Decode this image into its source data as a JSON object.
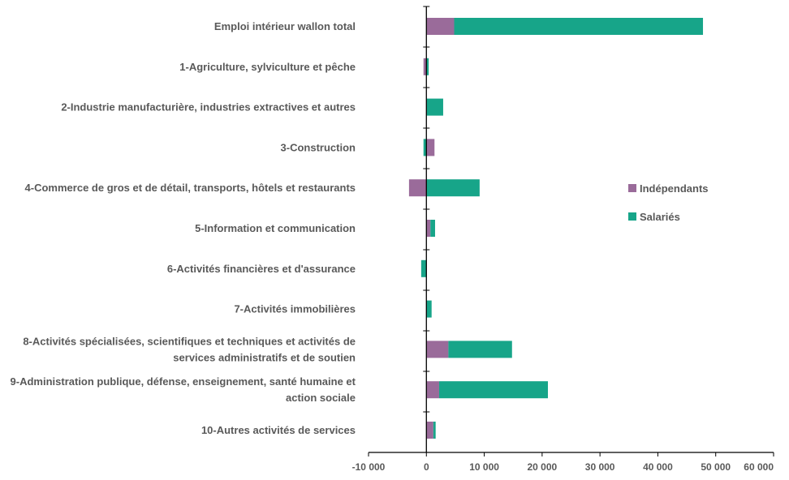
{
  "chart_data": {
    "type": "bar",
    "orientation": "horizontal",
    "stacked": true,
    "categories": [
      [
        "Emploi intérieur wallon total"
      ],
      [
        "1-Agriculture, sylviculture et pêche"
      ],
      [
        "2-Industrie manufacturière, industries extractives et autres"
      ],
      [
        "3-Construction"
      ],
      [
        "4-Commerce de gros et de détail, transports, hôtels et restaurants"
      ],
      [
        "5-Information et communication"
      ],
      [
        "6-Activités financières et d'assurance"
      ],
      [
        "7-Activités immobilières"
      ],
      [
        "8-Activités spécialisées, scientifiques et techniques et activités de",
        "services administratifs et de soutien"
      ],
      [
        "9-Administration publique, défense, enseignement, santé humaine et",
        "action sociale"
      ],
      [
        "10-Autres activités de services"
      ]
    ],
    "series": [
      {
        "name": "Indépendants",
        "color": "#9A6B9A",
        "values": [
          4800,
          -500,
          0,
          1400,
          -3000,
          700,
          0,
          0,
          3800,
          2200,
          1200
        ]
      },
      {
        "name": "Salariés",
        "color": "#17A589",
        "values": [
          43000,
          400,
          2900,
          -500,
          9200,
          800,
          -900,
          900,
          11000,
          18800,
          400
        ]
      }
    ],
    "xlim": [
      -10000,
      60000
    ],
    "xticks": [
      -10000,
      0,
      10000,
      20000,
      30000,
      40000,
      50000,
      60000
    ],
    "xtick_labels": [
      "-10 000",
      "0",
      "10 000",
      "20 000",
      "30 000",
      "40 000",
      "50 000",
      "60 000"
    ],
    "legend": {
      "placement": "right",
      "entries": [
        "Indépendants",
        "Salariés"
      ]
    },
    "grid": false,
    "title": "",
    "xlabel": "",
    "ylabel": ""
  }
}
